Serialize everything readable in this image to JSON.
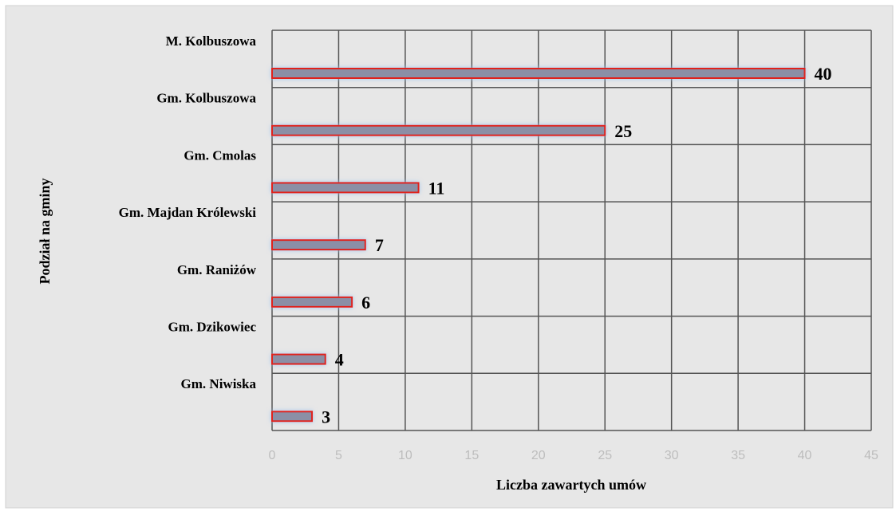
{
  "chart_data": {
    "type": "bar",
    "orientation": "horizontal",
    "categories": [
      "M. Kolbuszowa",
      "Gm. Kolbuszowa",
      "Gm. Cmolas",
      "Gm. Majdan Królewski",
      "Gm. Raniżów",
      "Gm. Dzikowiec",
      "Gm. Niwiska"
    ],
    "values": [
      40,
      25,
      11,
      7,
      6,
      4,
      3
    ],
    "color": "#8b8fa6",
    "edge_color": "#e0201f",
    "xlim": [
      0,
      45
    ],
    "xticks": [
      0,
      5,
      10,
      15,
      20,
      25,
      30,
      35,
      40,
      45
    ],
    "xlabel": "Liczba zawartych umów",
    "ylabel": "Podział na gminy",
    "grid": true
  }
}
